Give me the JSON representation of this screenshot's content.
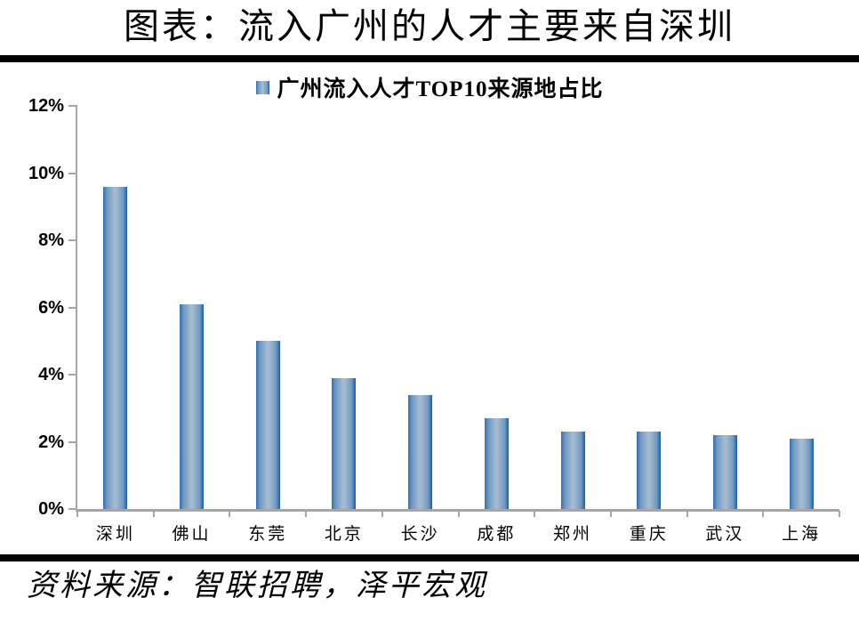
{
  "title": "图表：流入广州的人才主要来自深圳",
  "legend": {
    "label": "广州流入人才TOP10来源地占比"
  },
  "source": "资料来源：智联招聘，泽平宏观",
  "colors": {
    "bar_edge": "#2E6FB4",
    "bar_mid": "#6F98C2",
    "bar_center": "#A3BAD0",
    "bar_dark_edge": "#1F5E9E",
    "axis": "#A6A6A6",
    "text": "#000000",
    "rule": "#000000"
  },
  "chart_data": {
    "type": "bar",
    "title": "广州流入人才TOP10来源地占比",
    "categories": [
      "深圳",
      "佛山",
      "东莞",
      "北京",
      "长沙",
      "成都",
      "郑州",
      "重庆",
      "武汉",
      "上海"
    ],
    "values": [
      9.6,
      6.1,
      5.0,
      3.9,
      3.4,
      2.7,
      2.3,
      2.3,
      2.2,
      2.1
    ],
    "unit": "%",
    "xlabel": "",
    "ylabel": "",
    "ylim": [
      0,
      12
    ],
    "yticks": [
      0,
      2,
      4,
      6,
      8,
      10,
      12
    ],
    "ytick_labels": [
      "0%",
      "2%",
      "4%",
      "6%",
      "8%",
      "10%",
      "12%"
    ],
    "grid": false,
    "legend_position": "top-center"
  }
}
